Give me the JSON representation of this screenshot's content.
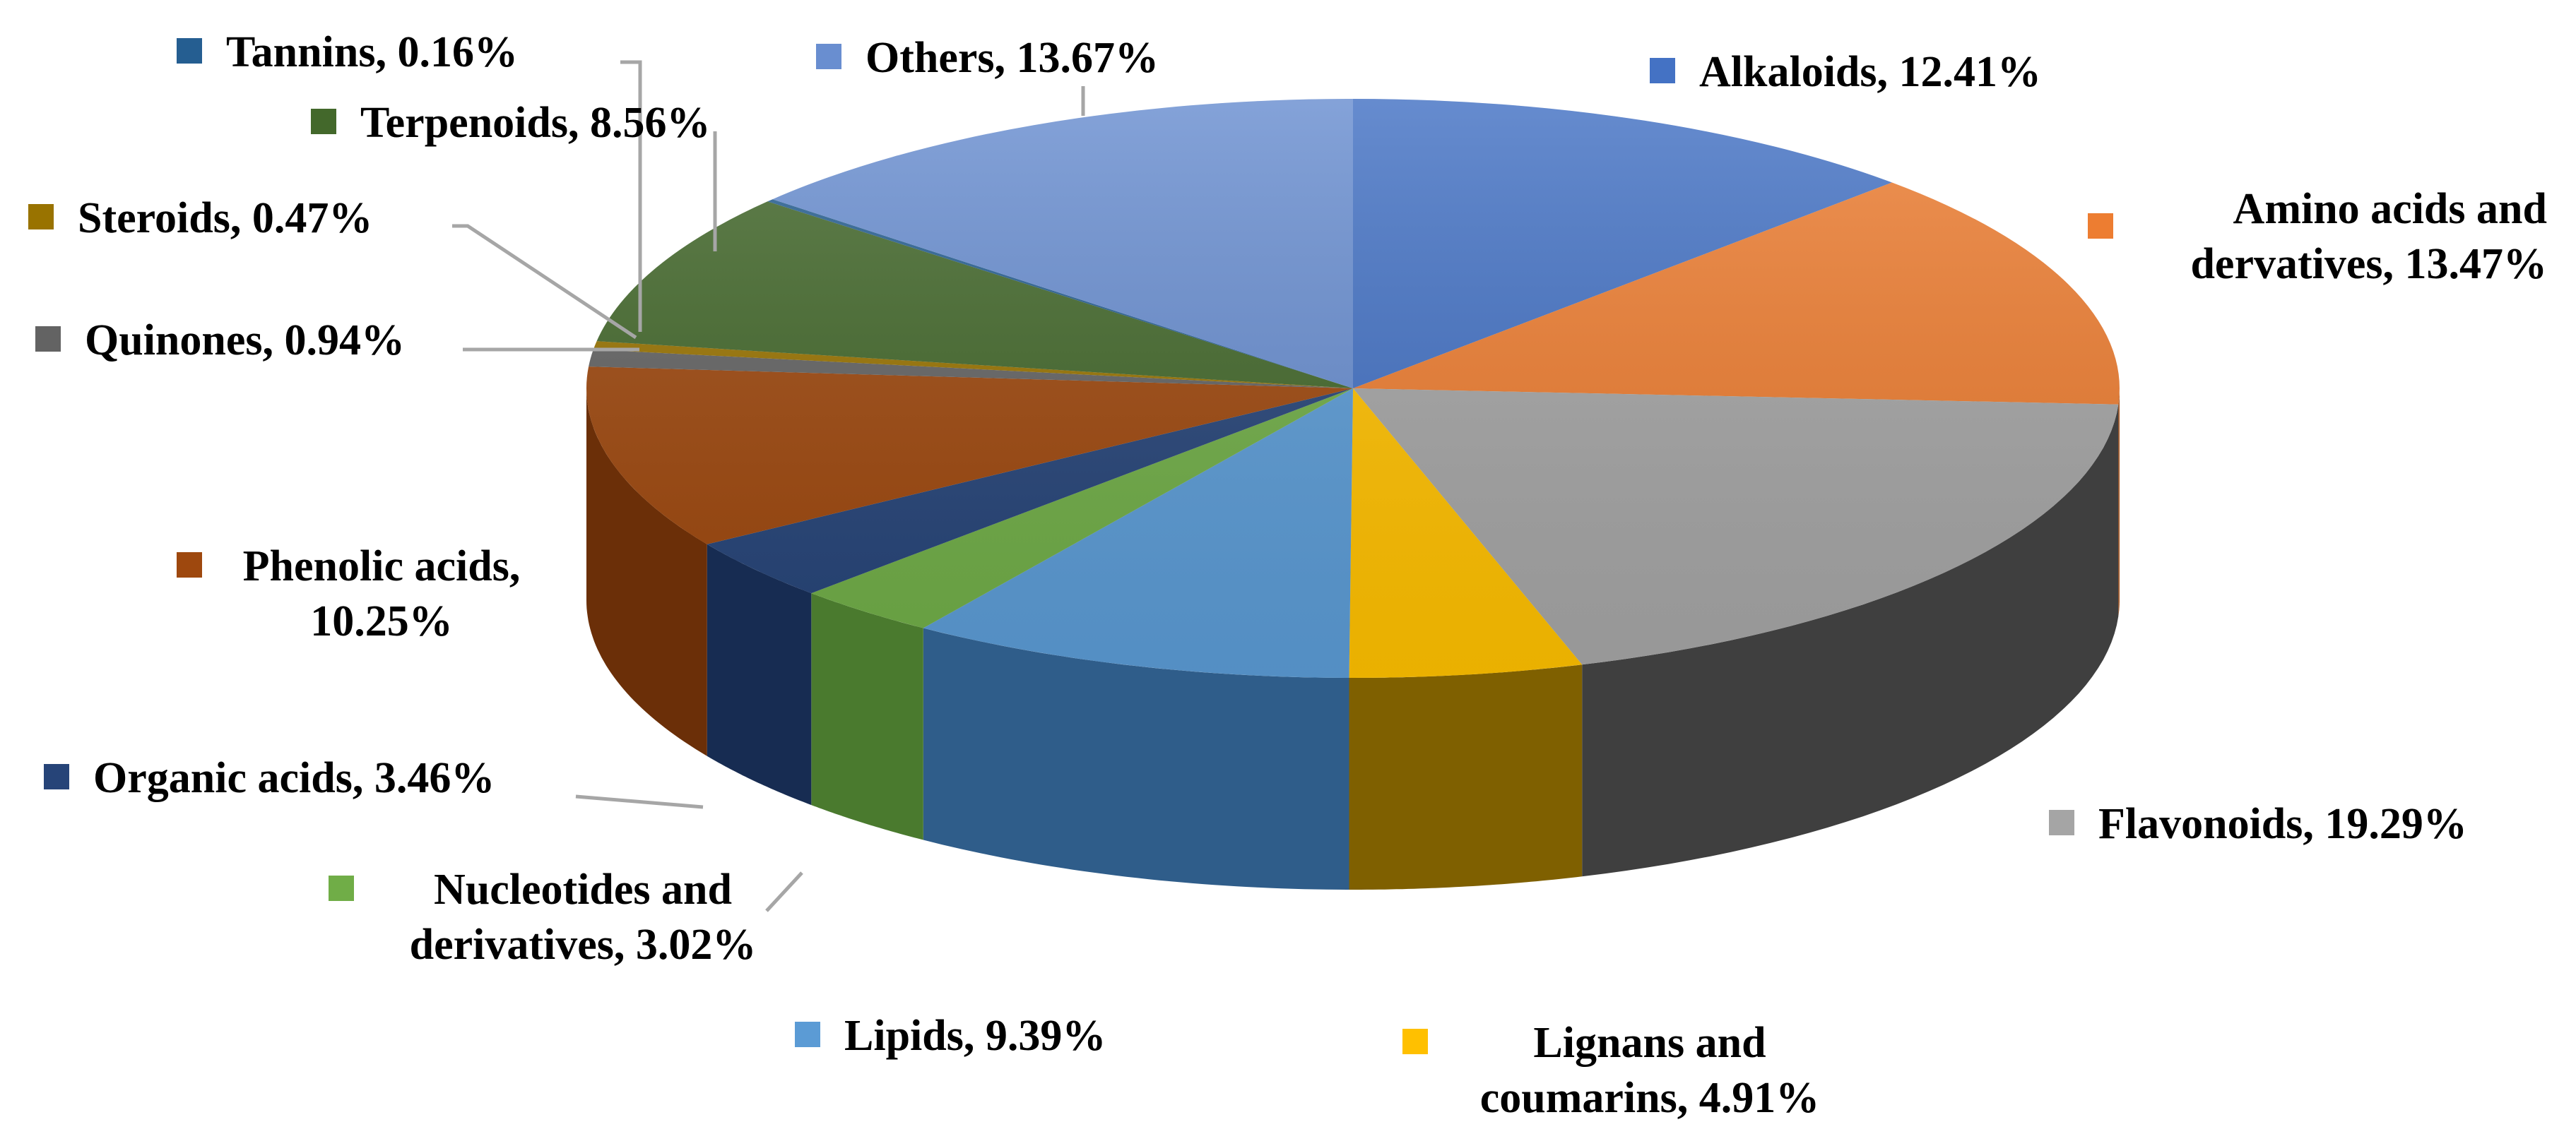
{
  "chart_data": {
    "type": "pie",
    "style": "3d",
    "title": "",
    "legend": "inline-labels",
    "slices": [
      {
        "key": "alkaloids",
        "lines": [
          "Alkaloids, 12.41%"
        ],
        "value": 12.41,
        "color": "#4472C4",
        "side_color": "#2E4F8C"
      },
      {
        "key": "amino",
        "lines": [
          "Amino acids and",
          "dervatives, 13.47%"
        ],
        "value": 13.47,
        "color": "#ED7D31",
        "side_color": "#A9561F"
      },
      {
        "key": "flavonoids",
        "lines": [
          "Flavonoids, 19.29%"
        ],
        "value": 19.29,
        "color": "#A5A5A5",
        "side_color": "#3F3F3F"
      },
      {
        "key": "lignans",
        "lines": [
          "Lignans and",
          "coumarins, 4.91%"
        ],
        "value": 4.91,
        "color": "#FFC000",
        "side_color": "#7F6000"
      },
      {
        "key": "lipids",
        "lines": [
          "Lipids, 9.39%"
        ],
        "value": 9.39,
        "color": "#5B9BD5",
        "side_color": "#2F5D8A"
      },
      {
        "key": "nucleotides",
        "lines": [
          "Nucleotides and",
          "derivatives, 3.02%"
        ],
        "value": 3.02,
        "color": "#70AD47",
        "side_color": "#4A7A2E"
      },
      {
        "key": "organic",
        "lines": [
          "Organic acids, 3.46%"
        ],
        "value": 3.46,
        "color": "#264478",
        "side_color": "#172C52"
      },
      {
        "key": "phenolic",
        "lines": [
          "Phenolic acids,",
          "10.25%"
        ],
        "value": 10.25,
        "color": "#9E480E",
        "side_color": "#6B2F08"
      },
      {
        "key": "quinones",
        "lines": [
          "Quinones, 0.94%"
        ],
        "value": 0.94,
        "color": "#636363",
        "side_color": "#404040"
      },
      {
        "key": "steroids",
        "lines": [
          "Steroids, 0.47%"
        ],
        "value": 0.47,
        "color": "#997300",
        "side_color": "#664D00"
      },
      {
        "key": "terpenoids",
        "lines": [
          "Terpenoids, 8.56%"
        ],
        "value": 8.56,
        "color": "#43682B",
        "side_color": "#2C451C"
      },
      {
        "key": "tannins",
        "lines": [
          "Tannins, 0.16%"
        ],
        "value": 0.16,
        "color": "#255E91",
        "side_color": "#173C5E"
      },
      {
        "key": "others",
        "lines": [
          "Others, 13.67%"
        ],
        "value": 13.67,
        "color": "#698ED0",
        "side_color": "#45659E"
      }
    ]
  }
}
